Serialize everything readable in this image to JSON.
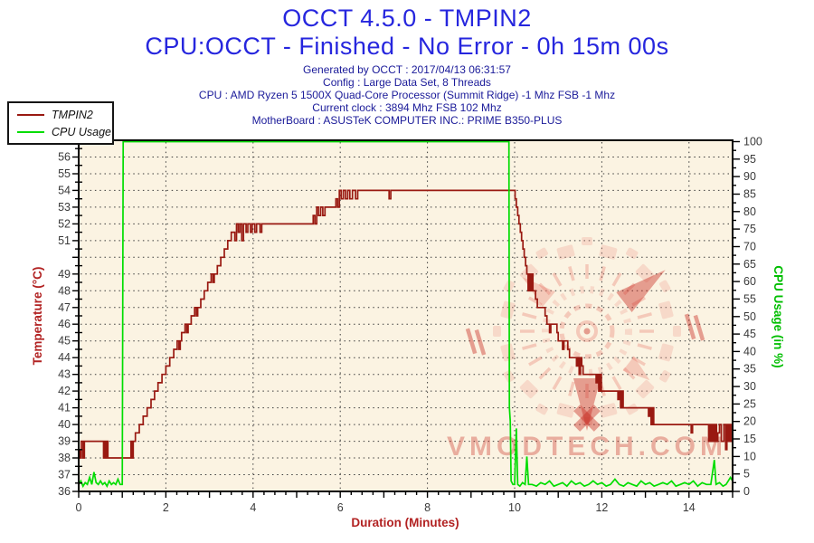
{
  "header": {
    "title_line1": "OCCT 4.5.0 - TMPIN2",
    "title_line2": "CPU:OCCT - Finished - No Error - 0h 15m 00s",
    "info_lines": [
      "Generated by OCCT : 2017/04/13 06:31:57",
      "Config : Large Data Set, 8 Threads",
      "CPU : AMD Ryzen 5 1500X Quad-Core Processor (Summit Ridge) -1 Mhz FSB -1 Mhz",
      "Current clock : 3894 Mhz FSB 102 Mhz",
      "MotherBoard : ASUSTeK COMPUTER INC.: PRIME B350-PLUS"
    ]
  },
  "legend": {
    "items": [
      {
        "label": "TMPIN2",
        "color": "#991911"
      },
      {
        "label": "CPU Usage",
        "color": "#00DD00"
      }
    ]
  },
  "watermark": {
    "text": "VMODTECH.COM",
    "text_color": "rgba(205,60,48,0.38)",
    "light": "rgba(233,120,105,0.34)",
    "pale": "rgba(238,150,135,0.28)",
    "dark": "rgba(198,38,28,0.42)"
  },
  "colors": {
    "plot_bg": "#FBF3E2",
    "grid": "#3C3C3C",
    "frame": "#000000",
    "tick_label": "#3A3A3A",
    "temp_axis": "#B22222",
    "cpu_axis": "#00BE00",
    "title_blue": "#2626DE",
    "info_navy": "#1A1A99"
  },
  "chart_data": {
    "type": "line",
    "title": "OCCT 4.5.0 - TMPIN2",
    "x_axis": {
      "label": "Duration (Minutes)",
      "min": 0,
      "max": 15,
      "labeled_ticks": [
        0,
        2,
        4,
        6,
        8,
        10,
        12,
        14
      ],
      "major_tick": 1,
      "minor_tick": 0.25,
      "grid_every": 2
    },
    "y_left": {
      "label": "Temperature (°C)",
      "min": 36,
      "max": 57,
      "labeled_ticks": [
        36,
        37,
        38,
        39,
        40,
        41,
        42,
        43,
        44,
        45,
        46,
        47,
        48,
        49,
        51,
        52,
        53,
        54,
        55,
        56,
        57
      ],
      "major_tick": 1,
      "minor_tick": 0.5,
      "grid_every": 1
    },
    "y_right": {
      "label": "CPU Usage (in %)",
      "min": 0,
      "max": 100,
      "labeled_ticks": [
        0,
        5,
        10,
        15,
        20,
        25,
        30,
        35,
        40,
        45,
        50,
        55,
        60,
        65,
        70,
        75,
        80,
        85,
        90,
        95,
        100
      ],
      "major_tick": 5,
      "minor_tick": 2.5
    },
    "grid": {
      "style": "dotted"
    },
    "legend_position": "top-left",
    "series": [
      {
        "name": "TMPIN2",
        "axis": "left",
        "color": "#991911",
        "interpolation": "step",
        "points": [
          [
            0.0,
            38.5
          ],
          [
            0.03,
            38
          ],
          [
            0.06,
            39
          ],
          [
            0.1,
            38
          ],
          [
            0.13,
            39
          ],
          [
            0.16,
            39
          ],
          [
            0.55,
            39
          ],
          [
            0.57,
            38
          ],
          [
            0.6,
            39
          ],
          [
            0.62,
            38
          ],
          [
            0.65,
            39
          ],
          [
            0.67,
            38
          ],
          [
            1.17,
            38
          ],
          [
            1.2,
            39
          ],
          [
            1.22,
            38
          ],
          [
            1.25,
            39
          ],
          [
            1.3,
            39.5
          ],
          [
            1.39,
            40
          ],
          [
            1.48,
            40.5
          ],
          [
            1.57,
            41
          ],
          [
            1.66,
            41.5
          ],
          [
            1.74,
            42
          ],
          [
            1.82,
            42.5
          ],
          [
            1.91,
            43
          ],
          [
            2.0,
            43.5
          ],
          [
            2.09,
            44
          ],
          [
            2.18,
            44.5
          ],
          [
            2.26,
            45
          ],
          [
            2.3,
            44.5
          ],
          [
            2.33,
            45
          ],
          [
            2.36,
            45.5
          ],
          [
            2.44,
            46
          ],
          [
            2.48,
            45.5
          ],
          [
            2.51,
            46
          ],
          [
            2.58,
            46.5
          ],
          [
            2.66,
            47
          ],
          [
            2.7,
            46.5
          ],
          [
            2.73,
            47
          ],
          [
            2.8,
            47.5
          ],
          [
            2.88,
            48
          ],
          [
            2.96,
            48.5
          ],
          [
            3.04,
            49
          ],
          [
            3.08,
            48.5
          ],
          [
            3.11,
            49
          ],
          [
            3.18,
            49.5
          ],
          [
            3.26,
            50
          ],
          [
            3.34,
            50.5
          ],
          [
            3.42,
            51
          ],
          [
            3.5,
            51.5
          ],
          [
            3.58,
            51
          ],
          [
            3.62,
            52
          ],
          [
            3.66,
            51.5
          ],
          [
            3.7,
            52
          ],
          [
            3.74,
            51
          ],
          [
            3.78,
            52
          ],
          [
            3.84,
            51.5
          ],
          [
            3.88,
            52
          ],
          [
            3.94,
            51.5
          ],
          [
            3.98,
            52
          ],
          [
            4.04,
            51.5
          ],
          [
            4.08,
            52
          ],
          [
            4.16,
            51.5
          ],
          [
            4.2,
            52
          ],
          [
            5.38,
            52.5
          ],
          [
            5.42,
            52
          ],
          [
            5.46,
            53
          ],
          [
            5.5,
            52.5
          ],
          [
            5.55,
            53
          ],
          [
            5.6,
            52.5
          ],
          [
            5.65,
            53
          ],
          [
            5.9,
            53.5
          ],
          [
            5.94,
            53
          ],
          [
            5.98,
            54
          ],
          [
            6.02,
            53.5
          ],
          [
            6.07,
            54
          ],
          [
            6.12,
            53.5
          ],
          [
            6.17,
            54
          ],
          [
            6.22,
            53.5
          ],
          [
            6.28,
            54
          ],
          [
            6.35,
            53.5
          ],
          [
            6.4,
            54
          ],
          [
            7.12,
            53.5
          ],
          [
            7.16,
            54
          ],
          [
            9.98,
            54
          ],
          [
            10.01,
            53.5
          ],
          [
            10.04,
            53
          ],
          [
            10.07,
            52.5
          ],
          [
            10.1,
            52
          ],
          [
            10.13,
            51.5
          ],
          [
            10.16,
            51
          ],
          [
            10.19,
            50.5
          ],
          [
            10.22,
            50
          ],
          [
            10.25,
            49.5
          ],
          [
            10.28,
            49
          ],
          [
            10.31,
            48
          ],
          [
            10.34,
            49
          ],
          [
            10.36,
            48
          ],
          [
            10.39,
            49
          ],
          [
            10.42,
            48
          ],
          [
            10.48,
            47.5
          ],
          [
            10.52,
            47
          ],
          [
            10.7,
            46.5
          ],
          [
            10.74,
            46
          ],
          [
            10.8,
            45.5
          ],
          [
            10.83,
            46
          ],
          [
            10.97,
            45.5
          ],
          [
            11.0,
            45
          ],
          [
            11.1,
            44.5
          ],
          [
            11.13,
            45
          ],
          [
            11.22,
            44.5
          ],
          [
            11.26,
            44
          ],
          [
            11.42,
            43.5
          ],
          [
            11.45,
            44
          ],
          [
            11.48,
            43
          ],
          [
            11.51,
            44
          ],
          [
            11.54,
            43.5
          ],
          [
            11.57,
            43
          ],
          [
            11.87,
            42.5
          ],
          [
            11.9,
            43
          ],
          [
            11.93,
            42
          ],
          [
            11.96,
            43
          ],
          [
            11.99,
            42
          ],
          [
            12.37,
            41.5
          ],
          [
            12.4,
            42
          ],
          [
            12.43,
            41
          ],
          [
            12.46,
            42
          ],
          [
            12.49,
            41
          ],
          [
            13.07,
            40.5
          ],
          [
            13.1,
            41
          ],
          [
            13.13,
            40
          ],
          [
            13.16,
            41
          ],
          [
            13.19,
            40
          ],
          [
            14.05,
            39.5
          ],
          [
            14.08,
            40
          ],
          [
            14.45,
            39
          ],
          [
            14.48,
            40
          ],
          [
            14.51,
            39
          ],
          [
            14.54,
            40
          ],
          [
            14.57,
            39
          ],
          [
            14.6,
            40
          ],
          [
            14.63,
            39
          ],
          [
            14.66,
            39.5
          ],
          [
            14.7,
            40
          ],
          [
            14.74,
            39
          ],
          [
            14.8,
            40
          ],
          [
            14.84,
            38.5
          ],
          [
            14.87,
            40
          ],
          [
            14.9,
            39
          ],
          [
            14.93,
            40
          ],
          [
            14.96,
            39
          ],
          [
            15.0,
            39.5
          ]
        ]
      },
      {
        "name": "CPU Usage",
        "axis": "right",
        "color": "#00DD00",
        "interpolation": "linear",
        "points": [
          [
            0.0,
            2
          ],
          [
            0.05,
            3
          ],
          [
            0.1,
            1.5
          ],
          [
            0.15,
            2.5
          ],
          [
            0.2,
            2
          ],
          [
            0.25,
            4
          ],
          [
            0.3,
            2
          ],
          [
            0.35,
            5.5
          ],
          [
            0.4,
            2.5
          ],
          [
            0.45,
            2
          ],
          [
            0.5,
            3
          ],
          [
            0.55,
            2
          ],
          [
            0.6,
            2.5
          ],
          [
            0.65,
            1.5
          ],
          [
            0.7,
            3
          ],
          [
            0.75,
            2
          ],
          [
            0.8,
            2.5
          ],
          [
            0.85,
            2
          ],
          [
            0.9,
            3.5
          ],
          [
            0.95,
            2
          ],
          [
            1.0,
            2
          ],
          [
            1.02,
            100
          ],
          [
            9.87,
            100
          ],
          [
            9.88,
            24
          ],
          [
            9.9,
            20
          ],
          [
            9.92,
            3
          ],
          [
            9.96,
            2
          ],
          [
            10.0,
            2
          ],
          [
            10.04,
            18
          ],
          [
            10.07,
            2
          ],
          [
            10.12,
            1.5
          ],
          [
            10.18,
            2.5
          ],
          [
            10.24,
            2
          ],
          [
            10.28,
            10
          ],
          [
            10.32,
            2
          ],
          [
            10.4,
            2
          ],
          [
            10.5,
            1.5
          ],
          [
            10.6,
            2.5
          ],
          [
            10.7,
            2
          ],
          [
            10.8,
            3
          ],
          [
            10.9,
            1.5
          ],
          [
            11.0,
            2
          ],
          [
            11.1,
            2.5
          ],
          [
            11.2,
            1.5
          ],
          [
            11.3,
            3
          ],
          [
            11.4,
            2
          ],
          [
            11.5,
            2.5
          ],
          [
            11.6,
            1.5
          ],
          [
            11.7,
            2
          ],
          [
            11.8,
            3
          ],
          [
            11.9,
            2
          ],
          [
            12.0,
            2.5
          ],
          [
            12.1,
            1.5
          ],
          [
            12.2,
            2
          ],
          [
            12.3,
            3.5
          ],
          [
            12.4,
            2
          ],
          [
            12.5,
            1.5
          ],
          [
            12.6,
            2.5
          ],
          [
            12.7,
            2
          ],
          [
            12.8,
            1.5
          ],
          [
            12.9,
            3
          ],
          [
            13.0,
            2
          ],
          [
            13.1,
            2.5
          ],
          [
            13.2,
            1.5
          ],
          [
            13.3,
            2
          ],
          [
            13.4,
            2.5
          ],
          [
            13.5,
            2
          ],
          [
            13.6,
            3
          ],
          [
            13.7,
            1.5
          ],
          [
            13.8,
            2
          ],
          [
            13.9,
            2.5
          ],
          [
            14.0,
            2
          ],
          [
            14.1,
            3
          ],
          [
            14.2,
            1.5
          ],
          [
            14.3,
            2.5
          ],
          [
            14.4,
            2
          ],
          [
            14.5,
            2
          ],
          [
            14.58,
            9
          ],
          [
            14.62,
            2
          ],
          [
            14.7,
            2.5
          ],
          [
            14.78,
            1.5
          ],
          [
            14.85,
            2
          ],
          [
            14.9,
            3
          ],
          [
            14.95,
            4
          ],
          [
            15.0,
            3
          ]
        ]
      }
    ]
  }
}
